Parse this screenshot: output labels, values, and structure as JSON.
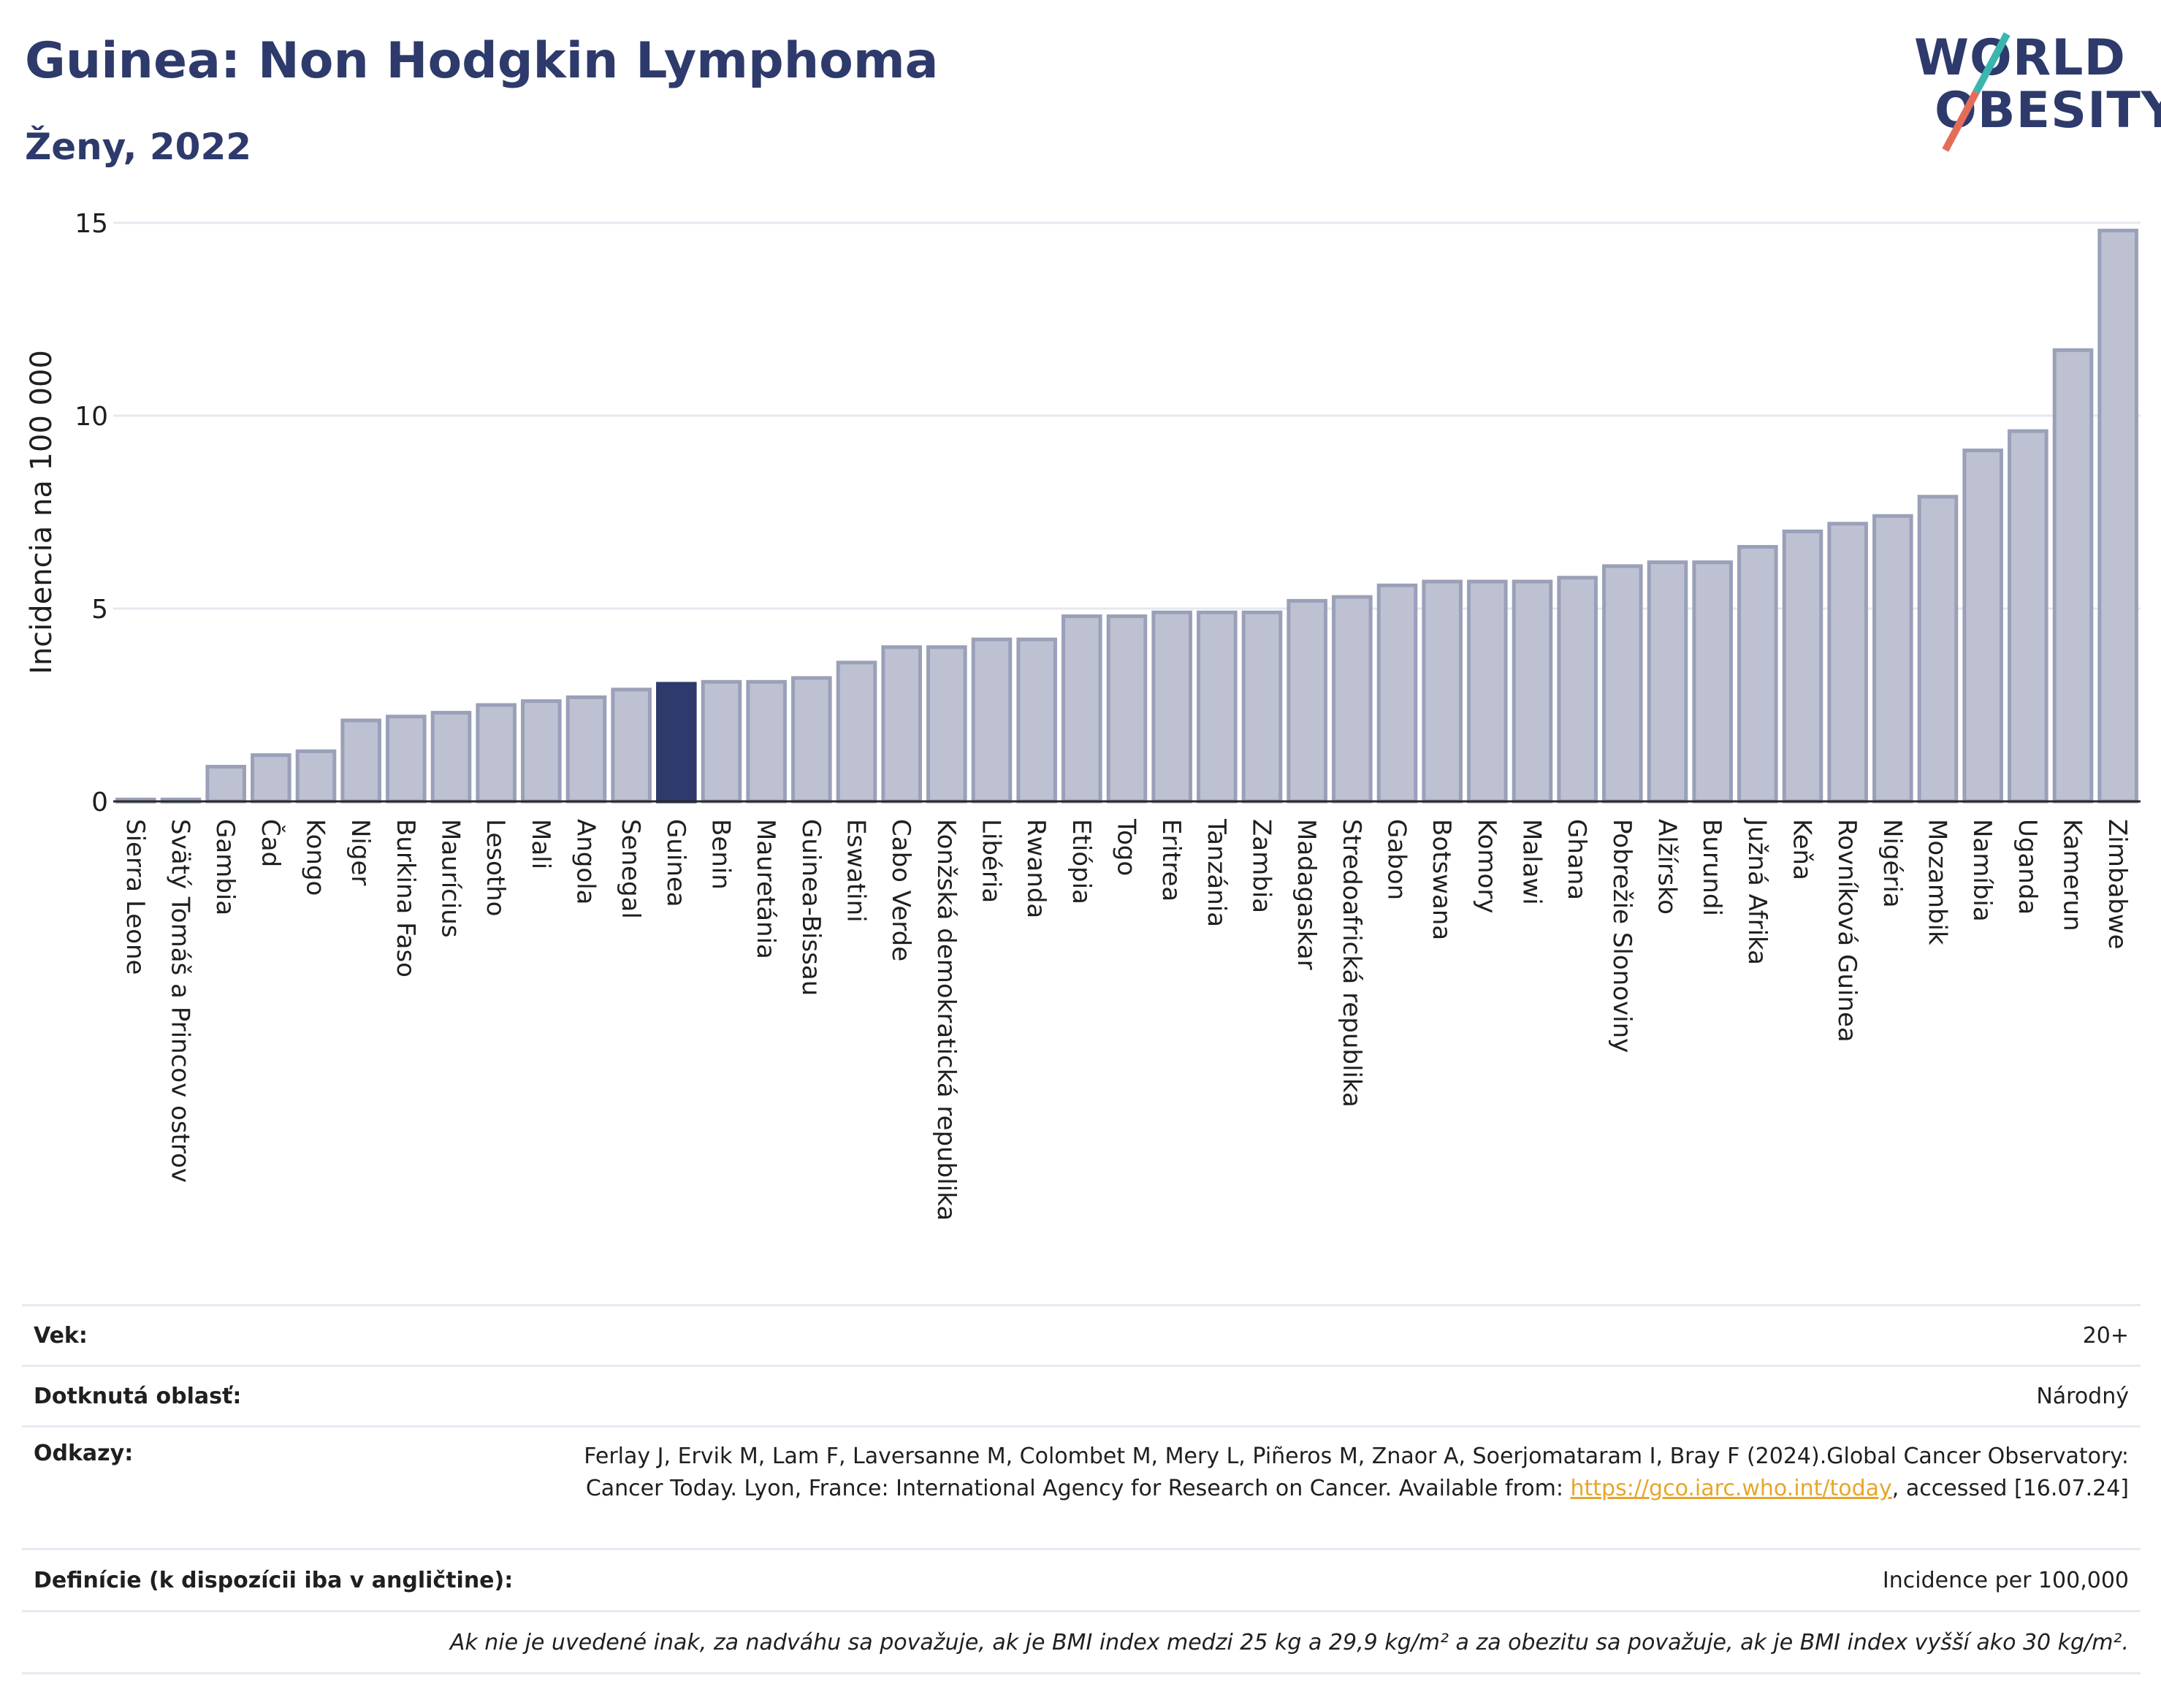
{
  "header": {
    "title": "Guinea: Non Hodgkin Lymphoma",
    "subtitle": "Ženy, 2022"
  },
  "logo": {
    "line1": "WORLD",
    "line2": "OBESITY"
  },
  "colors": {
    "highlight": "#2d3a6b",
    "bar": "#bdc1d1",
    "bar_border": "#9aa0b8",
    "title": "#2d3a6b",
    "link": "#e7a629"
  },
  "chart_data": {
    "type": "bar",
    "title": "Guinea: Non Hodgkin Lymphoma",
    "subtitle": "Ženy, 2022",
    "ylabel": "Incidencia na 100 000",
    "xlabel": "",
    "ylim": [
      0,
      15
    ],
    "yticks": [
      0,
      5,
      10,
      15
    ],
    "grid": true,
    "highlight": "Guinea",
    "categories": [
      "Sierra Leone",
      "Svätý Tomáš a Princov ostrov",
      "Gambia",
      "Čad",
      "Kongo",
      "Niger",
      "Burkina Faso",
      "Maurícius",
      "Lesotho",
      "Mali",
      "Angola",
      "Senegal",
      "Guinea",
      "Benin",
      "Mauretánia",
      "Guinea-Bissau",
      "Eswatini",
      "Cabo Verde",
      "Konžská demokratická republika",
      "Libéria",
      "Rwanda",
      "Etiópia",
      "Togo",
      "Eritrea",
      "Tanzánia",
      "Zambia",
      "Madagaskar",
      "Stredoafrická republika",
      "Gabon",
      "Botswana",
      "Komory",
      "Malawi",
      "Ghana",
      "Pobrežie Slonoviny",
      "Alžírsko",
      "Burundi",
      "Južná Afrika",
      "Keňa",
      "Rovníková Guinea",
      "Nigéria",
      "Mozambik",
      "Namíbia",
      "Uganda",
      "Kamerun",
      "Zimbabwe"
    ],
    "values": [
      0.05,
      0.05,
      0.9,
      1.2,
      1.3,
      2.1,
      2.2,
      2.3,
      2.5,
      2.6,
      2.7,
      2.9,
      3.05,
      3.1,
      3.1,
      3.2,
      3.6,
      4.0,
      4.0,
      4.2,
      4.2,
      4.8,
      4.8,
      4.9,
      4.9,
      4.9,
      5.2,
      5.3,
      5.6,
      5.7,
      5.7,
      5.7,
      5.8,
      6.1,
      6.2,
      6.2,
      6.6,
      7.0,
      7.2,
      7.4,
      7.9,
      9.1,
      9.6,
      11.7,
      14.8
    ]
  },
  "info": {
    "age_label": "Vek:",
    "age_value": "20+",
    "area_label": "Dotknutá oblasť:",
    "area_value": "Národný",
    "refs_label": "Odkazy:",
    "refs_text_1": "Ferlay J, Ervik M, Lam F, Laversanne M, Colombet M, Mery L, Piñeros M, Znaor A, Soerjomataram I, Bray F (2024).Global Cancer Observatory: Cancer Today. Lyon, France: International Agency for Research on Cancer. Available from: ",
    "refs_link": "https://gco.iarc.who.int/today",
    "refs_text_2": ", accessed [16.07.24]",
    "def_label": "Definície (k dispozícii iba v angličtine):",
    "def_value": "Incidence per 100,000",
    "footnote": "Ak nie je uvedené inak, za nadváhu sa považuje, ak je BMI index medzi 25 kg a 29,9 kg/m² a za obezitu sa považuje, ak je BMI index vyšší ako 30 kg/m²."
  }
}
